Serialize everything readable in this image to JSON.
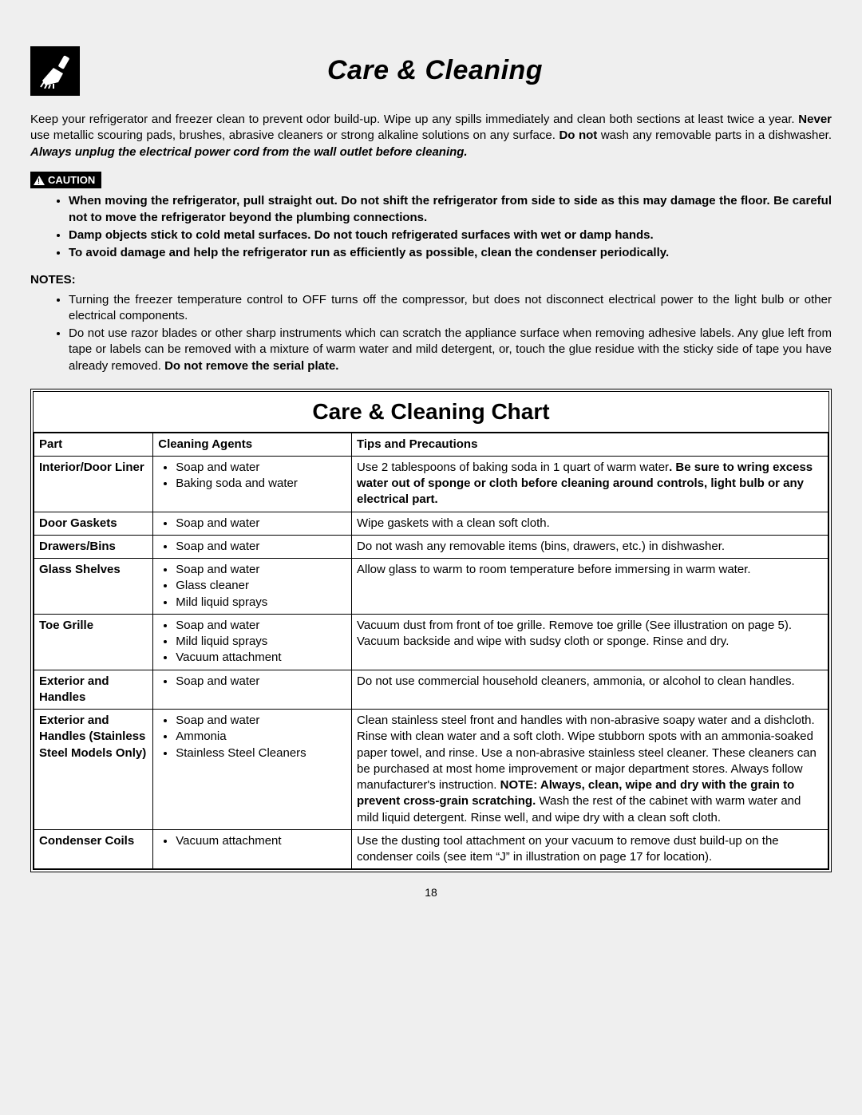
{
  "page": {
    "title": "Care & Cleaning",
    "intro_html": "Keep your refrigerator and freezer clean to prevent odor build-up. Wipe up any spills immediately and clean both sections at least twice a year. <b>Never</b> use metallic scouring pads, brushes, abrasive cleaners or strong alkaline solutions on any surface. <b>Do not</b> wash any removable parts in a dishwasher. <b><i>Always unplug the electrical power cord from the wall outlet before cleaning.</i></b>",
    "caution_label": "CAUTION",
    "cautions": [
      "When moving the refrigerator, pull straight out. Do not shift the refrigerator from side to side as this may damage the floor. Be careful not to move the refrigerator beyond the plumbing connections.",
      "Damp objects stick to cold metal surfaces. Do not touch refrigerated surfaces with wet or damp hands.",
      "To avoid damage and help the refrigerator run as efficiently as possible, clean the condenser periodically."
    ],
    "notes_head": "NOTES:",
    "notes": [
      "Turning the freezer temperature control to OFF turns off the compressor, but does not disconnect electrical power to the light bulb or other electrical components.",
      "Do not use razor blades or other sharp instruments which can scratch the appliance surface when removing adhesive labels. Any glue left from tape or labels can be removed with a mixture of warm water and mild detergent, or, touch the glue residue with the sticky side of tape you have already removed. <b>Do not remove the serial plate.</b>"
    ],
    "chart_title": "Care & Cleaning Chart",
    "columns": [
      "Part",
      "Cleaning Agents",
      "Tips and Precautions"
    ],
    "rows": [
      {
        "part": "Interior/Door Liner",
        "agents": [
          "Soap and water",
          "Baking soda and water"
        ],
        "tips_html": "Use 2 tablespoons of baking soda in 1 quart of warm water<b>. Be sure to wring excess water out of sponge or cloth before cleaning around controls, light bulb or any electrical part.</b>"
      },
      {
        "part": "Door Gaskets",
        "agents": [
          "Soap and water"
        ],
        "tips_html": "Wipe gaskets with a clean soft cloth."
      },
      {
        "part": "Drawers/Bins",
        "agents": [
          "Soap and water"
        ],
        "tips_html": "Do not wash any removable items (bins, drawers, etc.) in dishwasher."
      },
      {
        "part": "Glass Shelves",
        "agents": [
          "Soap and water",
          "Glass cleaner",
          "Mild liquid sprays"
        ],
        "tips_html": "Allow glass to warm to room temperature before immersing in warm water."
      },
      {
        "part": "Toe Grille",
        "agents": [
          "Soap and water",
          "Mild liquid sprays",
          "Vacuum attachment"
        ],
        "tips_html": "Vacuum dust from front of toe grille. Remove toe grille (See illustration on page 5). Vacuum backside and wipe with sudsy cloth or sponge. Rinse and dry."
      },
      {
        "part": "Exterior and Handles",
        "agents": [
          "Soap and water"
        ],
        "tips_html": "Do not use commercial household cleaners, ammonia, or alcohol to clean handles."
      },
      {
        "part": "Exterior and Handles (Stainless Steel Models Only)",
        "agents": [
          "Soap and water",
          "Ammonia",
          "Stainless Steel Cleaners"
        ],
        "tips_html": "Clean stainless steel front and handles with non-abrasive soapy water and a dishcloth. Rinse with clean water and a soft cloth. Wipe stubborn spots with an ammonia-soaked paper towel, and rinse. Use a non-abrasive stainless steel cleaner. These cleaners can be purchased at most home improvement or major department stores. Always follow manufacturer's instruction. <b>NOTE: Always, clean, wipe and dry with the grain to prevent cross-grain scratching.</b> Wash the rest of the cabinet with warm water and mild liquid detergent. Rinse well, and wipe dry with a clean soft cloth."
      },
      {
        "part": "Condenser Coils",
        "agents": [
          "Vacuum attachment"
        ],
        "tips_html": "Use the dusting tool attachment on your vacuum to remove dust build-up on the condenser coils (see item “J” in illustration on page 17 for location)."
      }
    ],
    "page_number": "18"
  },
  "colors": {
    "page_bg": "#efefef",
    "chart_bg": "#ffffff",
    "text": "#000000",
    "border": "#000000"
  },
  "typography": {
    "body_fontsize": 15,
    "title_fontsize": 34,
    "chart_title_fontsize": 28
  }
}
